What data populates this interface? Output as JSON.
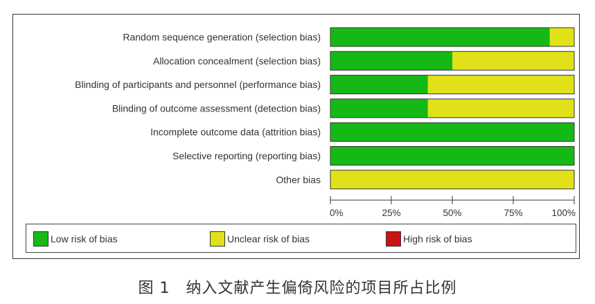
{
  "chart_data": {
    "type": "bar",
    "stacked": true,
    "orientation": "horizontal",
    "categories": [
      "Random sequence generation (selection bias)",
      "Allocation concealment (selection bias)",
      "Blinding of participants and personnel (performance bias)",
      "Blinding of outcome assessment (detection bias)",
      "Incomplete outcome data (attrition bias)",
      "Selective reporting (reporting bias)",
      "Other bias"
    ],
    "series": [
      {
        "name": "Low risk of bias",
        "color": "#15b915",
        "values": [
          90,
          50,
          40,
          40,
          100,
          100,
          0
        ]
      },
      {
        "name": "Unclear risk of bias",
        "color": "#e1e11a",
        "values": [
          10,
          50,
          60,
          60,
          0,
          0,
          100
        ]
      },
      {
        "name": "High risk of bias",
        "color": "#c81414",
        "values": [
          0,
          0,
          0,
          0,
          0,
          0,
          0
        ]
      }
    ],
    "xlim": [
      0,
      100
    ],
    "xticks": [
      "0%",
      "25%",
      "50%",
      "75%",
      "100%"
    ],
    "xlabel": "",
    "ylabel": "",
    "legend_position": "bottom",
    "grid": false
  },
  "legend": {
    "items": [
      {
        "label": "Low risk of bias",
        "color": "#15b915"
      },
      {
        "label": "Unclear risk of bias",
        "color": "#e1e11a"
      },
      {
        "label": "High risk of bias",
        "color": "#c81414"
      }
    ]
  },
  "caption": "图 1　纳入文献产生偏倚风险的项目所占比例"
}
